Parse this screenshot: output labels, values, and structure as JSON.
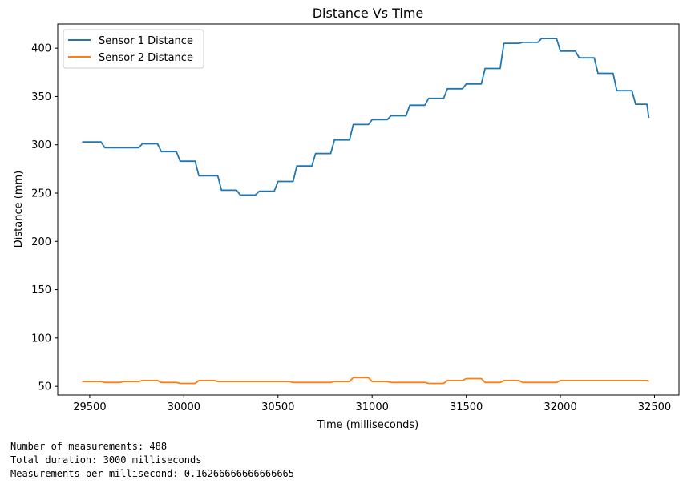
{
  "chart_data": {
    "type": "line",
    "title": "Distance Vs Time",
    "xlabel": "Time (milliseconds)",
    "ylabel": "Distance (mm)",
    "xlim": [
      29330,
      32630
    ],
    "ylim": [
      41,
      425
    ],
    "xticks": [
      29500,
      30000,
      30500,
      31000,
      31500,
      32000,
      32500
    ],
    "yticks": [
      50,
      100,
      150,
      200,
      250,
      300,
      350,
      400
    ],
    "grid": false,
    "legend_position": "top-left",
    "series": [
      {
        "name": "Sensor 1 Distance",
        "color": "#1f77b4",
        "step": true,
        "x": [
          29460,
          29560,
          29580,
          29760,
          29780,
          29860,
          29880,
          29960,
          29980,
          30060,
          30080,
          30180,
          30200,
          30280,
          30300,
          30380,
          30400,
          30480,
          30500,
          30580,
          30600,
          30680,
          30700,
          30780,
          30800,
          30880,
          30900,
          30980,
          31000,
          31080,
          31100,
          31180,
          31200,
          31280,
          31300,
          31380,
          31400,
          31480,
          31500,
          31580,
          31600,
          31680,
          31700,
          31780,
          31800,
          31880,
          31900,
          31980,
          32000,
          32080,
          32100,
          32180,
          32200,
          32280,
          32300,
          32380,
          32400,
          32460,
          32470
        ],
        "y": [
          303,
          303,
          297,
          297,
          301,
          301,
          293,
          293,
          283,
          283,
          268,
          268,
          253,
          253,
          248,
          248,
          252,
          252,
          262,
          262,
          278,
          278,
          291,
          291,
          305,
          305,
          321,
          321,
          326,
          326,
          330,
          330,
          341,
          341,
          348,
          348,
          358,
          358,
          363,
          363,
          379,
          379,
          405,
          405,
          406,
          406,
          410,
          410,
          397,
          397,
          390,
          390,
          374,
          374,
          356,
          356,
          342,
          342,
          328
        ]
      },
      {
        "name": "Sensor 2 Distance",
        "color": "#ff7f0e",
        "step": true,
        "x": [
          29460,
          29560,
          29580,
          29660,
          29680,
          29760,
          29780,
          29860,
          29880,
          29960,
          29980,
          30060,
          30080,
          30160,
          30180,
          30560,
          30580,
          30780,
          30800,
          30880,
          30900,
          30980,
          31000,
          31080,
          31100,
          31280,
          31300,
          31380,
          31400,
          31480,
          31500,
          31580,
          31600,
          31680,
          31700,
          31780,
          31800,
          31980,
          32000,
          32460,
          32470
        ],
        "y": [
          55,
          55,
          54,
          54,
          55,
          55,
          56,
          56,
          54,
          54,
          53,
          53,
          56,
          56,
          55,
          55,
          54,
          54,
          55,
          55,
          59,
          59,
          55,
          55,
          54,
          54,
          53,
          53,
          56,
          56,
          58,
          58,
          54,
          54,
          56,
          56,
          54,
          54,
          56,
          56,
          55
        ]
      }
    ]
  },
  "stats": {
    "line1": "Number of measurements: 488",
    "line2": "Total duration: 3000 milliseconds",
    "line3": "Measurements per millisecond: 0.16266666666666665"
  }
}
